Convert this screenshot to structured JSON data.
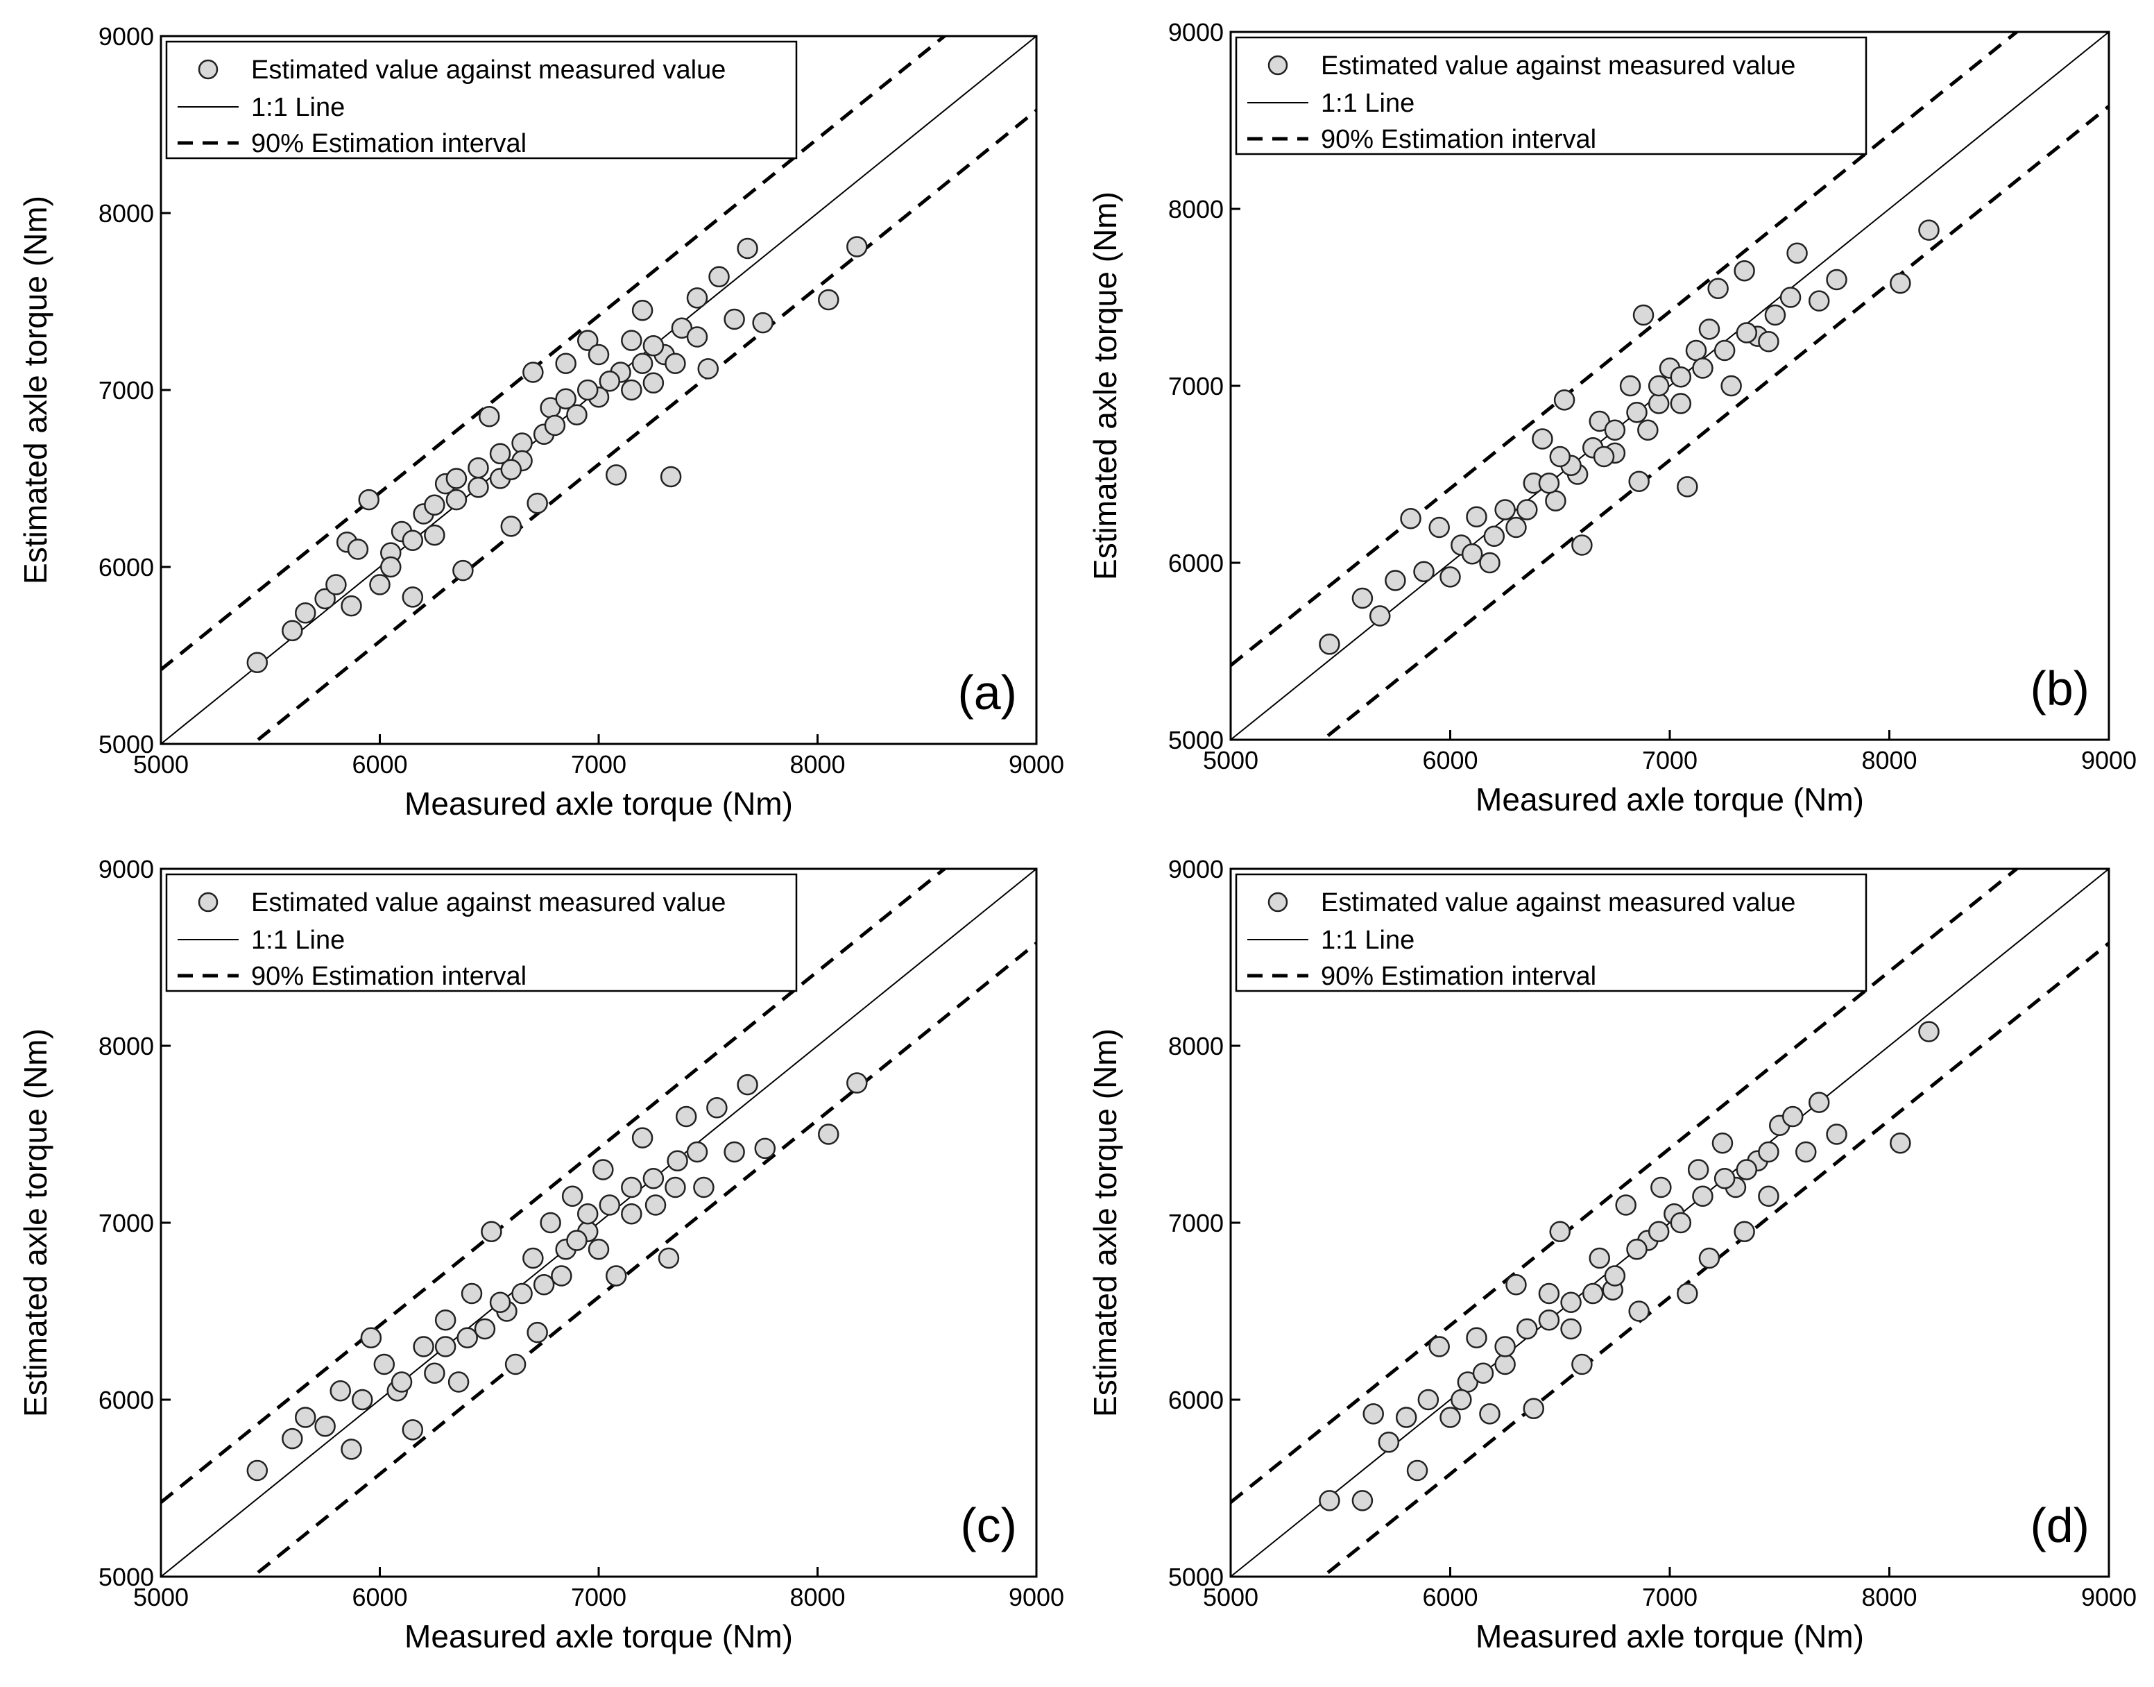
{
  "chart_data": [
    {
      "type": "scatter",
      "panel_label": "(a)",
      "xlabel": "Measured axle torque (Nm)",
      "ylabel": "Estimated axle torque (Nm)",
      "xlim": [
        5000,
        9000
      ],
      "ylim": [
        5000,
        9000
      ],
      "xticks": [
        "5000",
        "6000",
        "7000",
        "8000",
        "9000"
      ],
      "yticks": [
        "5000",
        "6000",
        "7000",
        "8000",
        "9000"
      ],
      "legend": [
        "Estimated value against measured value",
        "1:1 Line",
        "90% Estimation interval"
      ],
      "legend_position": "top-left",
      "series": [
        {
          "name": "Estimated value against measured value",
          "points": [
            [
              5440,
              5460
            ],
            [
              5600,
              5640
            ],
            [
              5660,
              5740
            ],
            [
              5750,
              5820
            ],
            [
              5800,
              5900
            ],
            [
              5850,
              6140
            ],
            [
              5870,
              5780
            ],
            [
              5900,
              6100
            ],
            [
              5950,
              6380
            ],
            [
              6000,
              5900
            ],
            [
              6050,
              6080
            ],
            [
              6100,
              6200
            ],
            [
              6150,
              5830
            ],
            [
              6200,
              6300
            ],
            [
              6250,
              6180
            ],
            [
              6300,
              6470
            ],
            [
              6350,
              6380
            ],
            [
              6380,
              5980
            ],
            [
              6450,
              6560
            ],
            [
              6500,
              6850
            ],
            [
              6550,
              6640
            ],
            [
              6600,
              6230
            ],
            [
              6650,
              6700
            ],
            [
              6700,
              7100
            ],
            [
              6720,
              6360
            ],
            [
              6780,
              6900
            ],
            [
              6850,
              7150
            ],
            [
              6900,
              6860
            ],
            [
              6950,
              7280
            ],
            [
              7000,
              6960
            ],
            [
              7080,
              6520
            ],
            [
              7100,
              7100
            ],
            [
              7150,
              7280
            ],
            [
              7200,
              7450
            ],
            [
              7250,
              7040
            ],
            [
              7300,
              7200
            ],
            [
              7330,
              6510
            ],
            [
              7380,
              7350
            ],
            [
              7450,
              7520
            ],
            [
              7500,
              7120
            ],
            [
              7550,
              7640
            ],
            [
              7620,
              7400
            ],
            [
              7680,
              7800
            ],
            [
              7750,
              7380
            ],
            [
              8050,
              7510
            ],
            [
              8180,
              7810
            ],
            [
              6050,
              6000
            ],
            [
              6150,
              6150
            ],
            [
              6250,
              6350
            ],
            [
              6350,
              6500
            ],
            [
              6450,
              6450
            ],
            [
              6550,
              6500
            ],
            [
              6650,
              6600
            ],
            [
              6750,
              6750
            ],
            [
              6850,
              6950
            ],
            [
              6950,
              7000
            ],
            [
              7050,
              7050
            ],
            [
              7150,
              7000
            ],
            [
              7250,
              7250
            ],
            [
              7350,
              7150
            ],
            [
              7450,
              7300
            ],
            [
              6600,
              6550
            ],
            [
              6800,
              6800
            ],
            [
              7000,
              7200
            ],
            [
              7200,
              7150
            ]
          ]
        }
      ],
      "reference_line": {
        "name": "1:1 Line",
        "slope": 1,
        "intercept": 0
      },
      "interval_lines": {
        "name": "90% Estimation interval",
        "offset": 420
      }
    },
    {
      "type": "scatter",
      "panel_label": "(b)",
      "xlabel": "Measured axle torque (Nm)",
      "ylabel": "Estimated axle torque (Nm)",
      "xlim": [
        5000,
        9000
      ],
      "ylim": [
        5000,
        9000
      ],
      "xticks": [
        "5000",
        "6000",
        "7000",
        "8000",
        "9000"
      ],
      "yticks": [
        "5000",
        "6000",
        "7000",
        "8000",
        "9000"
      ],
      "legend": [
        "Estimated value against measured value",
        "1:1 Line",
        "90% Estimation interval"
      ],
      "legend_position": "top-left",
      "series": [
        {
          "name": "Estimated value against measured value",
          "points": [
            [
              5450,
              5540
            ],
            [
              5600,
              5800
            ],
            [
              5680,
              5700
            ],
            [
              5750,
              5900
            ],
            [
              5820,
              6250
            ],
            [
              5880,
              5950
            ],
            [
              5950,
              6200
            ],
            [
              6000,
              5920
            ],
            [
              6050,
              6100
            ],
            [
              6120,
              6260
            ],
            [
              6180,
              6000
            ],
            [
              6250,
              6300
            ],
            [
              6300,
              6200
            ],
            [
              6380,
              6450
            ],
            [
              6420,
              6700
            ],
            [
              6480,
              6350
            ],
            [
              6520,
              6920
            ],
            [
              6580,
              6500
            ],
            [
              6600,
              6100
            ],
            [
              6680,
              6800
            ],
            [
              6750,
              6620
            ],
            [
              6820,
              7000
            ],
            [
              6860,
              6460
            ],
            [
              6880,
              7400
            ],
            [
              6950,
              6900
            ],
            [
              7000,
              7100
            ],
            [
              7080,
              6430
            ],
            [
              7120,
              7200
            ],
            [
              7180,
              7320
            ],
            [
              7220,
              7550
            ],
            [
              7280,
              7000
            ],
            [
              7340,
              7650
            ],
            [
              7400,
              7280
            ],
            [
              7480,
              7400
            ],
            [
              7550,
              7500
            ],
            [
              7580,
              7750
            ],
            [
              7680,
              7480
            ],
            [
              7760,
              7600
            ],
            [
              8050,
              7580
            ],
            [
              8180,
              7880
            ],
            [
              6100,
              6050
            ],
            [
              6200,
              6150
            ],
            [
              6350,
              6300
            ],
            [
              6450,
              6450
            ],
            [
              6550,
              6550
            ],
            [
              6650,
              6650
            ],
            [
              6750,
              6750
            ],
            [
              6850,
              6850
            ],
            [
              6950,
              7000
            ],
            [
              7050,
              7050
            ],
            [
              7150,
              7100
            ],
            [
              7250,
              7200
            ],
            [
              7350,
              7300
            ],
            [
              7450,
              7250
            ],
            [
              7050,
              6900
            ],
            [
              6900,
              6750
            ],
            [
              6700,
              6600
            ],
            [
              6500,
              6600
            ]
          ]
        }
      ],
      "reference_line": {
        "name": "1:1 Line",
        "slope": 1,
        "intercept": 0
      },
      "interval_lines": {
        "name": "90% Estimation interval",
        "offset": 420
      }
    },
    {
      "type": "scatter",
      "panel_label": "(c)",
      "xlabel": "Measured axle torque (Nm)",
      "ylabel": "Estimated axle torque (Nm)",
      "xlim": [
        5000,
        9000
      ],
      "ylim": [
        5000,
        9000
      ],
      "xticks": [
        "5000",
        "6000",
        "7000",
        "8000",
        "9000"
      ],
      "yticks": [
        "5000",
        "6000",
        "7000",
        "8000",
        "9000"
      ],
      "legend": [
        "Estimated value against measured value",
        "1:1 Line",
        "90% Estimation interval"
      ],
      "legend_position": "top-left",
      "series": [
        {
          "name": "Estimated value against measured value",
          "points": [
            [
              5440,
              5600
            ],
            [
              5600,
              5780
            ],
            [
              5660,
              5900
            ],
            [
              5750,
              5850
            ],
            [
              5820,
              6050
            ],
            [
              5870,
              5720
            ],
            [
              5920,
              6000
            ],
            [
              5960,
              6350
            ],
            [
              6020,
              6200
            ],
            [
              6080,
              6050
            ],
            [
              6150,
              5830
            ],
            [
              6200,
              6300
            ],
            [
              6250,
              6150
            ],
            [
              6300,
              6450
            ],
            [
              6360,
              6100
            ],
            [
              6420,
              6600
            ],
            [
              6480,
              6400
            ],
            [
              6510,
              6950
            ],
            [
              6580,
              6500
            ],
            [
              6620,
              6200
            ],
            [
              6700,
              6800
            ],
            [
              6720,
              6380
            ],
            [
              6780,
              7000
            ],
            [
              6830,
              6700
            ],
            [
              6880,
              7150
            ],
            [
              6950,
              6950
            ],
            [
              7020,
              7300
            ],
            [
              7080,
              6700
            ],
            [
              7150,
              7200
            ],
            [
              7200,
              7480
            ],
            [
              7260,
              7100
            ],
            [
              7320,
              6800
            ],
            [
              7360,
              7350
            ],
            [
              7400,
              7600
            ],
            [
              7480,
              7200
            ],
            [
              7540,
              7650
            ],
            [
              7620,
              7400
            ],
            [
              7680,
              7780
            ],
            [
              7760,
              7420
            ],
            [
              8050,
              7500
            ],
            [
              8180,
              7790
            ],
            [
              6100,
              6100
            ],
            [
              6300,
              6300
            ],
            [
              6400,
              6350
            ],
            [
              6550,
              6550
            ],
            [
              6650,
              6600
            ],
            [
              6750,
              6650
            ],
            [
              6850,
              6850
            ],
            [
              6950,
              7050
            ],
            [
              7050,
              7100
            ],
            [
              7150,
              7050
            ],
            [
              7250,
              7250
            ],
            [
              7350,
              7200
            ],
            [
              7450,
              7400
            ],
            [
              6900,
              6900
            ],
            [
              7000,
              6850
            ]
          ]
        }
      ],
      "reference_line": {
        "name": "1:1 Line",
        "slope": 1,
        "intercept": 0
      },
      "interval_lines": {
        "name": "90% Estimation interval",
        "offset": 420
      }
    },
    {
      "type": "scatter",
      "panel_label": "(d)",
      "xlabel": "Measured axle torque (Nm)",
      "ylabel": "Estimated axle torque (Nm)",
      "xlim": [
        5000,
        9000
      ],
      "ylim": [
        5000,
        9000
      ],
      "xticks": [
        "5000",
        "6000",
        "7000",
        "8000",
        "9000"
      ],
      "yticks": [
        "5000",
        "6000",
        "7000",
        "8000",
        "9000"
      ],
      "legend": [
        "Estimated value against measured value",
        "1:1 Line",
        "90% Estimation interval"
      ],
      "legend_position": "top-left",
      "series": [
        {
          "name": "Estimated value against measured value",
          "points": [
            [
              5450,
              5430
            ],
            [
              5600,
              5430
            ],
            [
              5650,
              5920
            ],
            [
              5720,
              5760
            ],
            [
              5800,
              5900
            ],
            [
              5850,
              5600
            ],
            [
              5900,
              6000
            ],
            [
              5950,
              6300
            ],
            [
              6000,
              5900
            ],
            [
              6080,
              6100
            ],
            [
              6120,
              6350
            ],
            [
              6180,
              5920
            ],
            [
              6250,
              6200
            ],
            [
              6300,
              6650
            ],
            [
              6350,
              6400
            ],
            [
              6380,
              5950
            ],
            [
              6450,
              6600
            ],
            [
              6500,
              6950
            ],
            [
              6550,
              6400
            ],
            [
              6600,
              6200
            ],
            [
              6680,
              6800
            ],
            [
              6740,
              6620
            ],
            [
              6800,
              7100
            ],
            [
              6860,
              6500
            ],
            [
              6900,
              6900
            ],
            [
              6960,
              7200
            ],
            [
              7020,
              7050
            ],
            [
              7080,
              6600
            ],
            [
              7130,
              7300
            ],
            [
              7180,
              6800
            ],
            [
              7240,
              7450
            ],
            [
              7300,
              7200
            ],
            [
              7340,
              6950
            ],
            [
              7400,
              7350
            ],
            [
              7450,
              7150
            ],
            [
              7500,
              7550
            ],
            [
              7560,
              7600
            ],
            [
              7620,
              7400
            ],
            [
              7680,
              7680
            ],
            [
              7760,
              7500
            ],
            [
              8050,
              7450
            ],
            [
              8180,
              8080
            ],
            [
              6050,
              6000
            ],
            [
              6150,
              6150
            ],
            [
              6250,
              6300
            ],
            [
              6450,
              6450
            ],
            [
              6650,
              6600
            ],
            [
              6850,
              6850
            ],
            [
              6950,
              6950
            ],
            [
              7050,
              7000
            ],
            [
              7150,
              7150
            ],
            [
              7250,
              7250
            ],
            [
              7350,
              7300
            ],
            [
              7450,
              7400
            ],
            [
              6550,
              6550
            ],
            [
              6750,
              6700
            ]
          ]
        }
      ],
      "reference_line": {
        "name": "1:1 Line",
        "slope": 1,
        "intercept": 0
      },
      "interval_lines": {
        "name": "90% Estimation interval",
        "offset": 420
      }
    }
  ]
}
